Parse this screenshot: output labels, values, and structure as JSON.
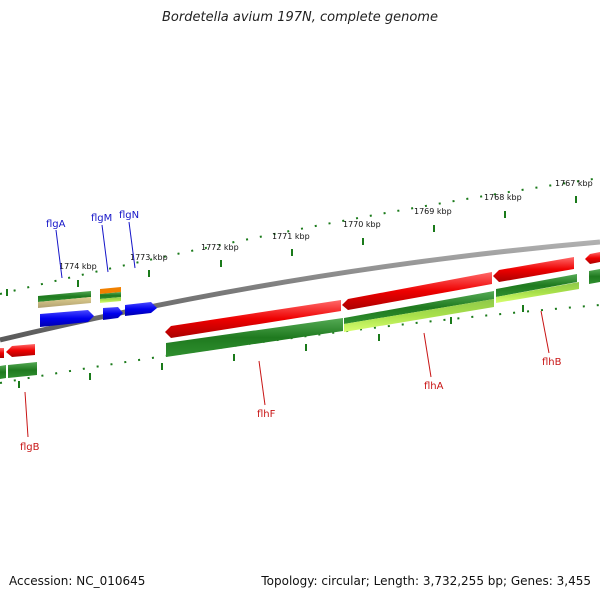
{
  "title": "Bordetella avium 197N, complete genome",
  "footer": {
    "accession": "Accession: NC_010645",
    "info": "Topology: circular; Length: 3,732,255 bp; Genes: 3,455"
  },
  "scale_ticks": [
    "1767 kbp",
    "1768 kbp",
    "1769 kbp",
    "1770 kbp",
    "1771 kbp",
    "1772 kbp",
    "1773 kbp",
    "1774 kbp"
  ],
  "genes": [
    {
      "name": "flgA",
      "strand": "forward",
      "color": "blue"
    },
    {
      "name": "flgM",
      "strand": "forward",
      "color": "blue"
    },
    {
      "name": "flgN",
      "strand": "forward",
      "color": "blue"
    },
    {
      "name": "flgB",
      "strand": "reverse",
      "color": "red"
    },
    {
      "name": "flhF",
      "strand": "reverse",
      "color": "red"
    },
    {
      "name": "flhA",
      "strand": "reverse",
      "color": "red"
    },
    {
      "name": "flhB",
      "strand": "reverse",
      "color": "red"
    }
  ],
  "colors": {
    "backbone": "#808080",
    "forward_cds": "#0000ee",
    "reverse_cds": "#ee0000",
    "tick": "#1a7a1a",
    "label_blue": "#1515c8",
    "label_red": "#c81515"
  }
}
